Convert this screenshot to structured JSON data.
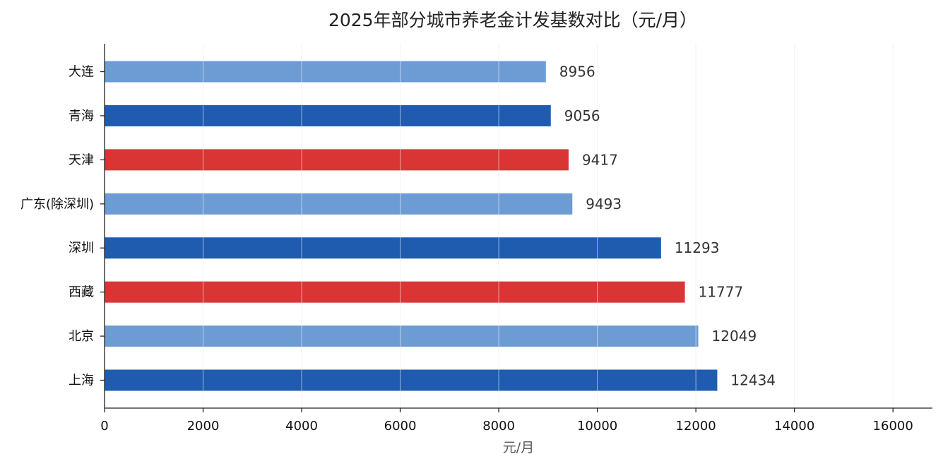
{
  "chart_data": {
    "type": "bar",
    "orientation": "horizontal",
    "title": "2025年部分城市养老金计发基数对比（元/月）",
    "xlabel": "元/月",
    "ylabel": "",
    "categories": [
      "大连",
      "青海",
      "天津",
      "广东(除深圳)",
      "深圳",
      "西藏",
      "北京",
      "上海"
    ],
    "values": [
      8956,
      9056,
      9417,
      9493,
      11293,
      11777,
      12049,
      12434
    ],
    "value_labels": [
      "8956",
      "9056",
      "9417",
      "9493",
      "11293",
      "11777",
      "12049",
      "12434"
    ],
    "bar_colors": [
      "#6d9bd4",
      "#1f5cb0",
      "#d93535",
      "#6d9bd4",
      "#1f5cb0",
      "#d93535",
      "#6d9bd4",
      "#1f5cb0"
    ],
    "xlim": [
      0,
      16800
    ],
    "xticks": [
      0,
      2000,
      4000,
      6000,
      8000,
      10000,
      12000,
      14000,
      16000
    ],
    "xtick_labels": [
      "0",
      "2000",
      "4000",
      "6000",
      "8000",
      "10000",
      "12000",
      "14000",
      "16000"
    ],
    "grid": "vertical",
    "legend": "none"
  }
}
